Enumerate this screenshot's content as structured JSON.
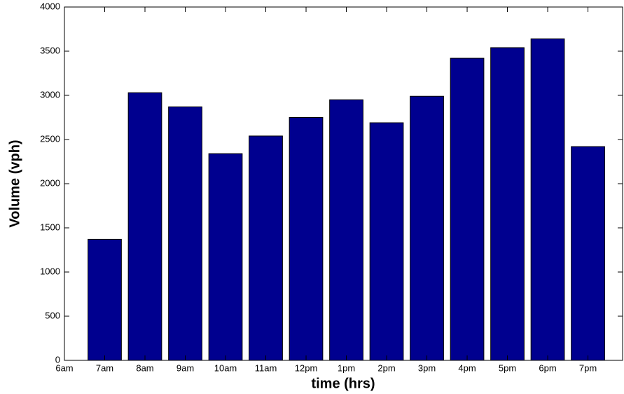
{
  "chart_data": {
    "type": "bar",
    "categories": [
      "6am",
      "7am",
      "8am",
      "9am",
      "10am",
      "11am",
      "12pm",
      "1pm",
      "2pm",
      "3pm",
      "4pm",
      "5pm",
      "6pm",
      "7pm"
    ],
    "values": [
      null,
      1370,
      3030,
      2870,
      2340,
      2540,
      2750,
      2950,
      2690,
      2990,
      3420,
      3540,
      3640,
      2420
    ],
    "color": "#00008f",
    "ylim": [
      0,
      4000
    ],
    "yticks": [
      0,
      500,
      1000,
      1500,
      2000,
      2500,
      3000,
      3500,
      4000
    ],
    "x_label": "time (hrs)",
    "y_label": "Volume (vph)"
  }
}
